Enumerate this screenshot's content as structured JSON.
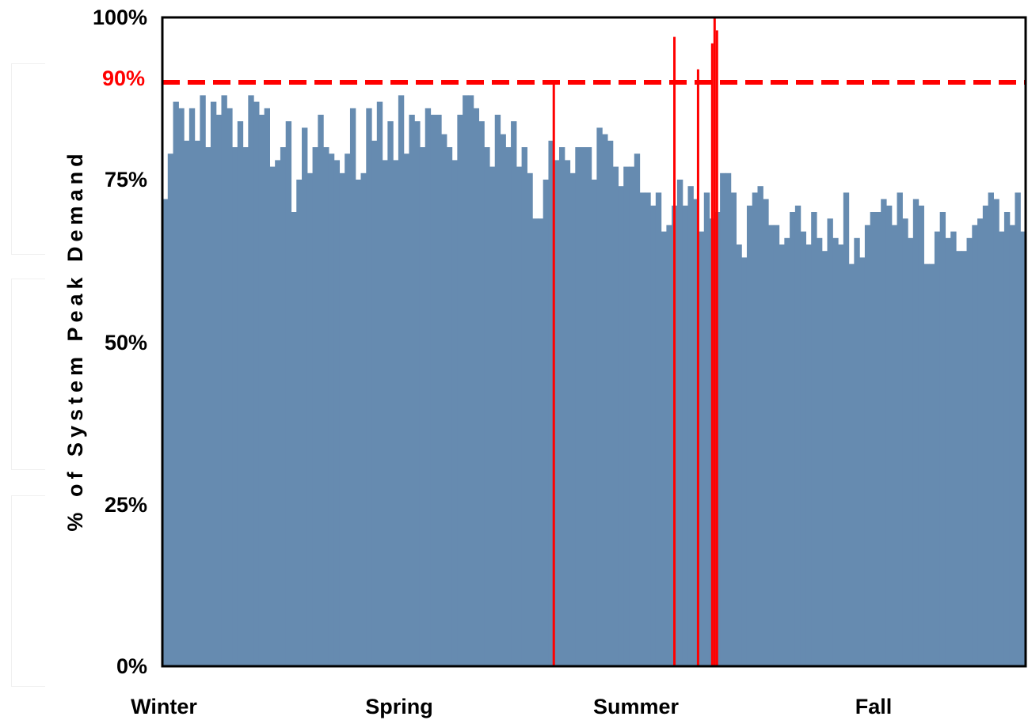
{
  "chart_data": {
    "type": "bar",
    "title": "",
    "ylabel": "% of System Peak Demand",
    "xlabel": "",
    "ylim": [
      0,
      100
    ],
    "y_ticks": [
      "0%",
      "25%",
      "50%",
      "75%",
      "100%"
    ],
    "season_labels": [
      "Winter",
      "Spring",
      "Summer",
      "Fall"
    ],
    "reference_line": {
      "value": 90,
      "label": "90%",
      "color": "#ff0000",
      "style": "dashed"
    },
    "colors": {
      "bar": "#668bb0",
      "peak_bar": "#ff0000",
      "axis": "#000000"
    },
    "grid": false,
    "series": [
      {
        "values": [
          72,
          79,
          87,
          86,
          81,
          86,
          81,
          88,
          80,
          87,
          85,
          88,
          86,
          80,
          84,
          80,
          88,
          87,
          85,
          86,
          77,
          78,
          80,
          84,
          70,
          75,
          83,
          76,
          80,
          85,
          80,
          79,
          78,
          76,
          79,
          86,
          75,
          76,
          86,
          81,
          87,
          78,
          84,
          78,
          88,
          79,
          85,
          84,
          80,
          86,
          85,
          85,
          82,
          80,
          78,
          85,
          88,
          88,
          86,
          84,
          80,
          77,
          85,
          82,
          80,
          84,
          77,
          80,
          76,
          69,
          69,
          75,
          81,
          78,
          80,
          78,
          76,
          80,
          80,
          80,
          75,
          83,
          82,
          81,
          77,
          74,
          77,
          77,
          79,
          73,
          73,
          71,
          73,
          67,
          68,
          71,
          75,
          71,
          74,
          72,
          67,
          73,
          69,
          70,
          76,
          76,
          73,
          65,
          63,
          71,
          73,
          74,
          72,
          68,
          68,
          65,
          66,
          70,
          71,
          67,
          65,
          70,
          66,
          64,
          69,
          66,
          65,
          73,
          62,
          66,
          63,
          68,
          70,
          70,
          72,
          71,
          68,
          73,
          69,
          66,
          72,
          71,
          62,
          62,
          67,
          70,
          66,
          67,
          64,
          64,
          66,
          68,
          69,
          71,
          73,
          72,
          67,
          70,
          68,
          73,
          67
        ],
        "bar_values_y": "percent",
        "x_extent_days": 365
      }
    ],
    "notes_peak_days": [
      {
        "day": 165,
        "value": 90
      },
      {
        "day": 216,
        "value": 97
      },
      {
        "day": 226,
        "value": 92
      },
      {
        "day": 232,
        "value": 96
      },
      {
        "day": 233,
        "value": 100
      },
      {
        "day": 234,
        "value": 98
      }
    ]
  }
}
